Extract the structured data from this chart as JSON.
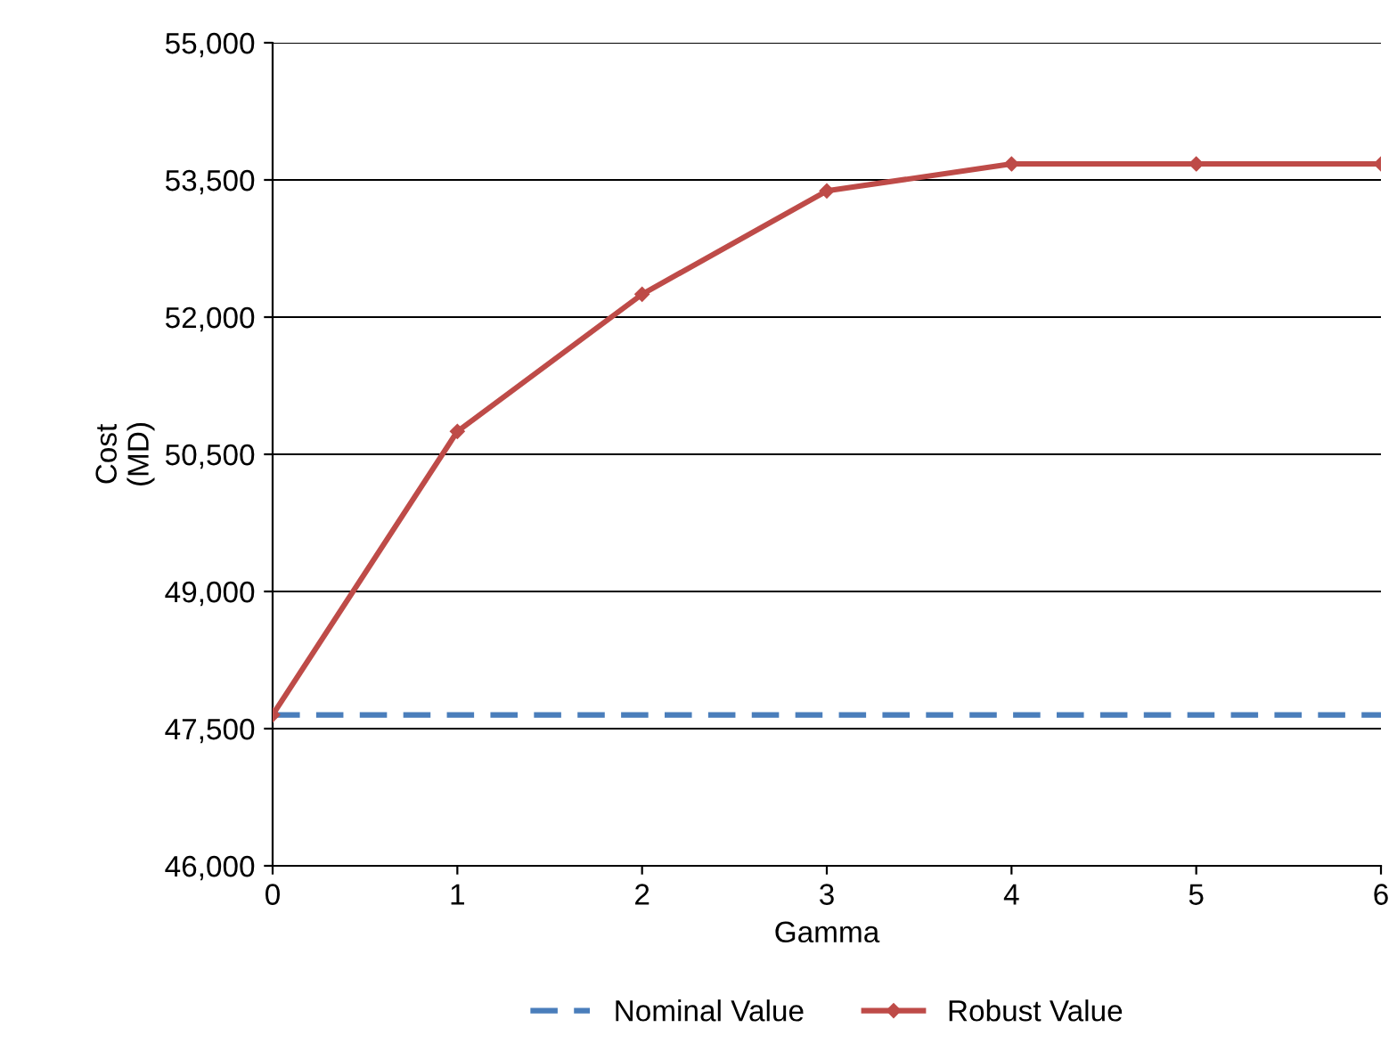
{
  "chart_data": {
    "type": "line",
    "xlabel": "Gamma",
    "ylabel": "Cost\n(MD)",
    "x": [
      0,
      1,
      2,
      3,
      4,
      5,
      6
    ],
    "xlim": [
      0,
      6
    ],
    "xticks": [
      0,
      1,
      2,
      3,
      4,
      5,
      6
    ],
    "ylim": [
      46000,
      55000
    ],
    "yticks": [
      {
        "value": 46000,
        "label": "46,000"
      },
      {
        "value": 47500,
        "label": "47,500"
      },
      {
        "value": 49000,
        "label": "49,000"
      },
      {
        "value": 50500,
        "label": "50,500"
      },
      {
        "value": 52000,
        "label": "52,000"
      },
      {
        "value": 53500,
        "label": "53,500"
      },
      {
        "value": 55000,
        "label": "55,000"
      }
    ],
    "grid": "y",
    "legend": "bottom",
    "series": [
      {
        "name": "Nominal Value",
        "color": "#4a7ebb",
        "values": [
          47650,
          47650,
          47650,
          47650,
          47650,
          47650,
          47650
        ],
        "line_style": "dashed",
        "marker": "none"
      },
      {
        "name": "Robust Value",
        "color": "#be4b48",
        "values": [
          47650,
          50750,
          52250,
          53380,
          53675,
          53675,
          53675
        ],
        "line_style": "solid",
        "marker": "diamond"
      }
    ]
  }
}
